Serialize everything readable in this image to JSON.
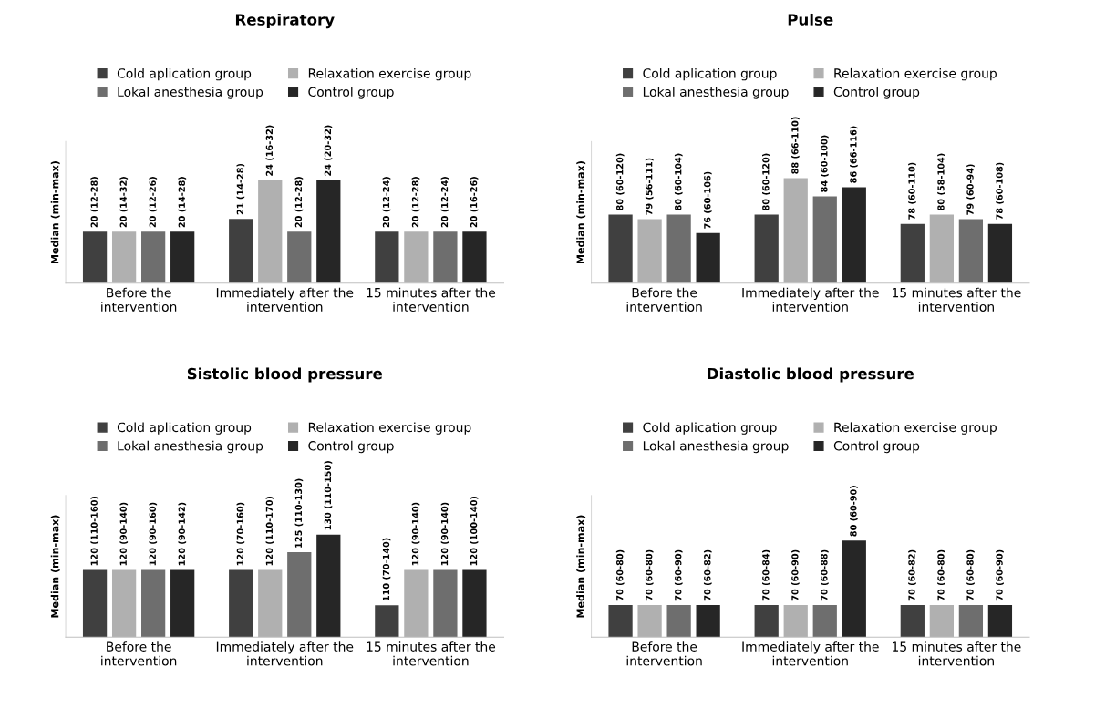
{
  "chart_data": [
    {
      "type": "bar",
      "title": "Respiratory",
      "ylabel": "Median (min-max)",
      "categories": [
        "Before the intervention",
        "Immediately after the intervention",
        "15 minutes after the intervention"
      ],
      "ylim": [
        16,
        27
      ],
      "tick_labels": "x",
      "legend": "top",
      "series": [
        {
          "name": "Cold aplication group",
          "color": "#404040",
          "values": [
            20,
            21,
            20
          ],
          "value_labels": [
            "20 (12-28)",
            "21 (14-28)",
            "20 (12-24)"
          ]
        },
        {
          "name": "Relaxation exercise group",
          "color": "#b0b0b0",
          "values": [
            20,
            24,
            20
          ],
          "value_labels": [
            "20 (14-32)",
            "24 (16-32)",
            "20 (12-28)"
          ]
        },
        {
          "name": "Lokal anesthesia group",
          "color": "#6e6e6e",
          "values": [
            20,
            20,
            20
          ],
          "value_labels": [
            "20 (12-26)",
            "20 (12-28)",
            "20 (12-24)"
          ]
        },
        {
          "name": "Control group",
          "color": "#262626",
          "values": [
            20,
            24,
            20
          ],
          "value_labels": [
            "20 (14-28)",
            "24 (20-32)",
            "20 (16-26)"
          ]
        }
      ]
    },
    {
      "type": "bar",
      "title": "Pulse",
      "ylabel": "Median (min-max)",
      "categories": [
        "Before the intervention",
        "Immediately after the intervention",
        "15 minutes after the intervention"
      ],
      "ylim": [
        65,
        96
      ],
      "tick_labels": "x",
      "legend": "top",
      "series": [
        {
          "name": "Cold aplication group",
          "color": "#404040",
          "values": [
            80,
            80,
            78
          ],
          "value_labels": [
            "80 (60-120)",
            "80 (60-120)",
            "78 (60-110)"
          ]
        },
        {
          "name": "Relaxation exercise group",
          "color": "#b0b0b0",
          "values": [
            79,
            88,
            80
          ],
          "value_labels": [
            "79 (56-111)",
            "88 (66-110)",
            "80 (58-104)"
          ]
        },
        {
          "name": "Lokal anesthesia group",
          "color": "#6e6e6e",
          "values": [
            80,
            84,
            79
          ],
          "value_labels": [
            "80 (60-104)",
            "84 (60-100)",
            "79 (60-94)"
          ]
        },
        {
          "name": "Control group",
          "color": "#262626",
          "values": [
            76,
            86,
            78
          ],
          "value_labels": [
            "76 (60-106)",
            "86 (66-116)",
            "78 (60-108)"
          ]
        }
      ]
    },
    {
      "type": "bar",
      "title": "Sistolic blood pressure",
      "ylabel": "Median (min-max)",
      "categories": [
        "Before the intervention",
        "Immediately after the intervention",
        "15 minutes after the intervention"
      ],
      "ylim": [
        101,
        141
      ],
      "tick_labels": "x",
      "legend": "top",
      "series": [
        {
          "name": "Cold aplication group",
          "color": "#404040",
          "values": [
            120,
            120,
            110
          ],
          "value_labels": [
            "120 (110-160)",
            "120 (70-160)",
            "110 (70-140)"
          ]
        },
        {
          "name": "Relaxation exercise group",
          "color": "#b0b0b0",
          "values": [
            120,
            120,
            120
          ],
          "value_labels": [
            "120 (90-140)",
            "120 (110-170)",
            "120 (90-140)"
          ]
        },
        {
          "name": "Lokal anesthesia group",
          "color": "#6e6e6e",
          "values": [
            120,
            125,
            120
          ],
          "value_labels": [
            "120 (90-160)",
            "125 (110-130)",
            "120 (90-140)"
          ]
        },
        {
          "name": "Control group",
          "color": "#262626",
          "values": [
            120,
            130,
            120
          ],
          "value_labels": [
            "120 (90-142)",
            "130 (110-150)",
            "120 (100-140)"
          ]
        }
      ]
    },
    {
      "type": "bar",
      "title": "Diastolic blood pressure",
      "ylabel": "Median (min-max)",
      "categories": [
        "Before the intervention",
        "Immediately after the intervention",
        "15 minutes after the intervention"
      ],
      "ylim": [
        65,
        87
      ],
      "tick_labels": "x",
      "legend": "top",
      "series": [
        {
          "name": "Cold aplication group",
          "color": "#404040",
          "values": [
            70,
            70,
            70
          ],
          "value_labels": [
            "70 (60-80)",
            "70 (60-84)",
            "70 (60-82)"
          ]
        },
        {
          "name": "Relaxation exercise group",
          "color": "#b0b0b0",
          "values": [
            70,
            70,
            70
          ],
          "value_labels": [
            "70 (60-80)",
            "70 (60-90)",
            "70 (60-80)"
          ]
        },
        {
          "name": "Lokal anesthesia group",
          "color": "#6e6e6e",
          "values": [
            70,
            70,
            70
          ],
          "value_labels": [
            "70 (60-90)",
            "70 (60-88)",
            "70 (60-80)"
          ]
        },
        {
          "name": "Control group",
          "color": "#262626",
          "values": [
            70,
            80,
            70
          ],
          "value_labels": [
            "70 (60-82)",
            "80 (60-90)",
            "70 (60-90)"
          ]
        }
      ]
    }
  ]
}
